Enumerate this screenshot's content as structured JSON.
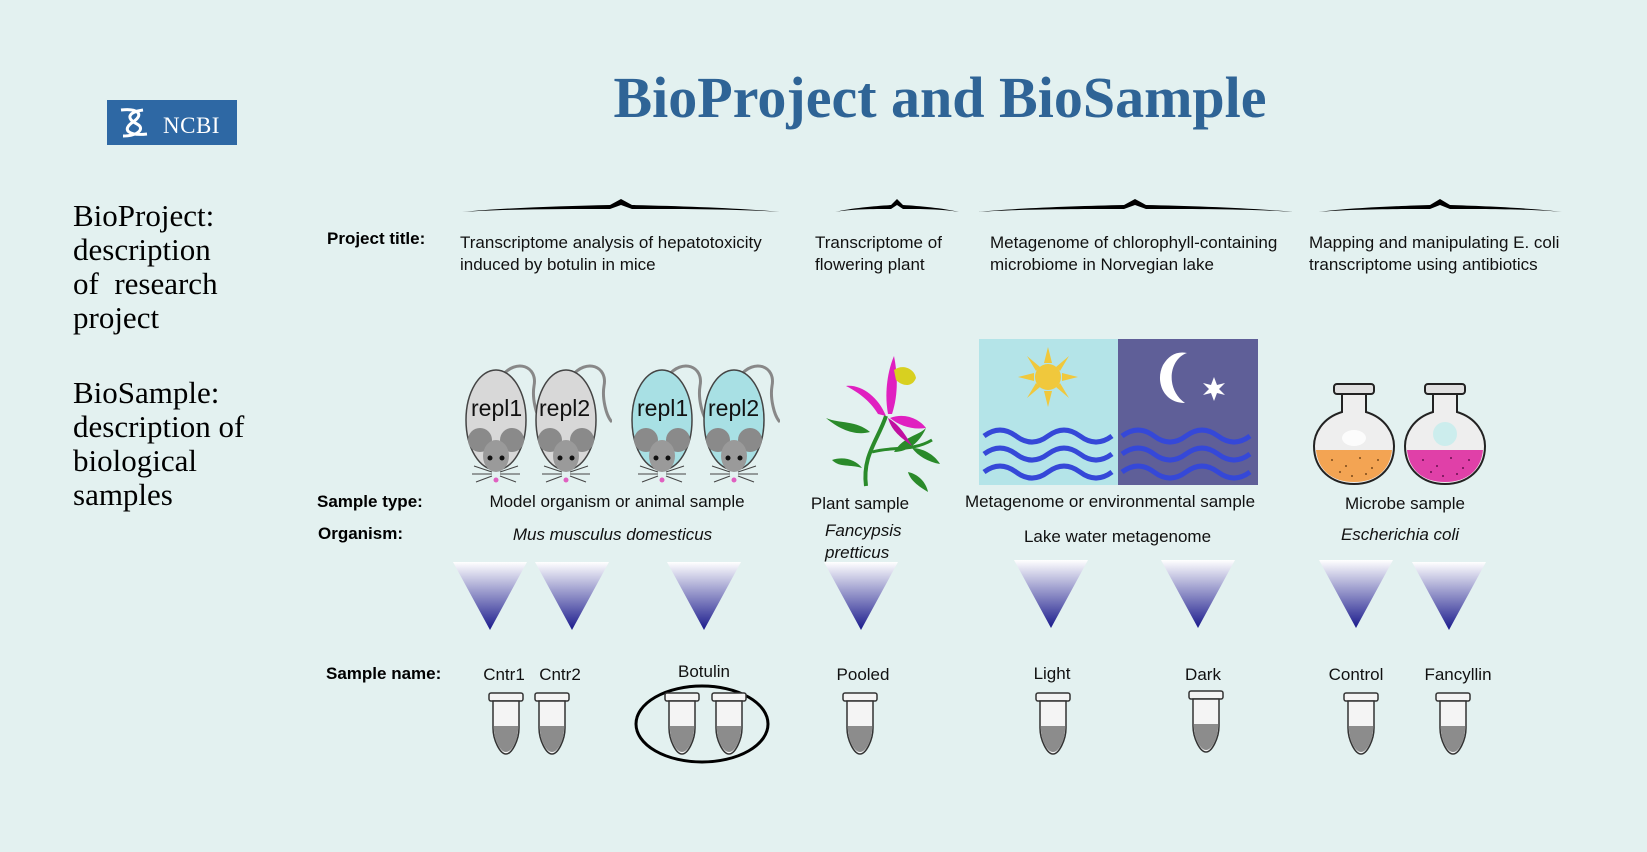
{
  "title": "BioProject and BioSample",
  "logo": {
    "text": "NCBI",
    "icon": "ncbi-helix-icon"
  },
  "sidebar": {
    "bioproject": [
      "BioProject:",
      "description",
      "of  research",
      "project"
    ],
    "biosample": [
      "BioSample:",
      "description of",
      "biological",
      "samples"
    ]
  },
  "labels": {
    "project_title": "Project title:",
    "sample_type": "Sample type:",
    "organism": "Organism:",
    "sample_name": "Sample name:"
  },
  "projects": [
    {
      "title_lines": [
        "Transcriptome analysis of hepatotoxicity",
        "induced by botulin in mice"
      ],
      "sample_type": "Model organism or animal sample",
      "organism": "Mus musculus domesticus",
      "replicates": [
        "repl1",
        "repl2",
        "repl1",
        "repl2"
      ],
      "samples": [
        "Cntr1",
        "Cntr2",
        "Botulin"
      ]
    },
    {
      "title_lines": [
        "Transcriptome of",
        "flowering plant"
      ],
      "sample_type": "Plant sample",
      "organism_lines": [
        "Fancypsis",
        "pretticus"
      ],
      "samples": [
        "Pooled"
      ]
    },
    {
      "title_lines": [
        "Metagenome of chlorophyll-containing",
        "microbiome in Norvegian lake"
      ],
      "sample_type": "Metagenome or environmental sample",
      "organism": "Lake water metagenome",
      "samples": [
        "Light",
        "Dark"
      ]
    },
    {
      "title_lines": [
        "Mapping and manipulating E. coli",
        "transcriptome using antibiotics"
      ],
      "sample_type": "Microbe sample",
      "organism": "Escherichia coli",
      "samples": [
        "Control",
        "Fancyllin"
      ]
    }
  ],
  "colors": {
    "background": "#e3f1f0",
    "title": "#2f6496",
    "logo": "#2e68a4",
    "triangle_dark": "#1a1a8c",
    "flask_orange": "#f3a453",
    "flask_pink": "#e040a8",
    "mouse_grey": "#d8d8d8",
    "mouse_blue": "#a8e0e4",
    "lake_day": "#b4e4e8",
    "lake_night": "#5f5f98",
    "wave": "#3548d8",
    "sun": "#f0c83c"
  }
}
